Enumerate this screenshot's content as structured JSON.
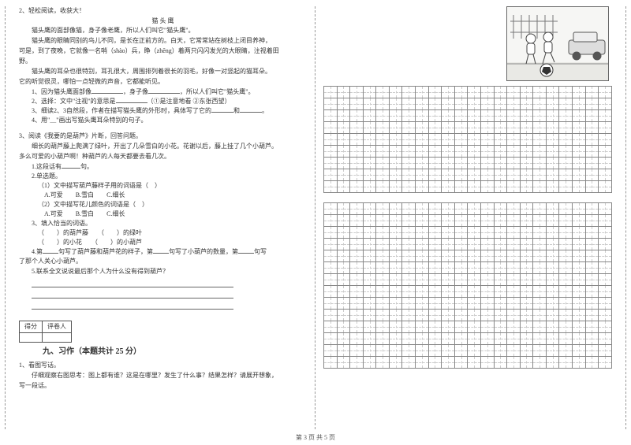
{
  "left": {
    "q2_head": "2、轻松阅读，收获大！",
    "q2_title": "猫 头 鹰",
    "q2_p1": "猫头鹰的面部像猫，身子像老鹰，所以人们叫它\"猫头鹰\"。",
    "q2_p2a": "猫头鹰的眼睛同别的鸟儿不同，是长在正前方的。白天，它常常站在树枝上闭目养神，",
    "q2_p2b": "可是，到了夜晚，它就像一名哨（shào）兵，睁（zhēng）着两只闪闪发光的大眼睛，注视着田",
    "q2_p2c": "野。",
    "q2_p3a": "猫头鹰的耳朵也很特别，耳孔很大，周围排列着很长的羽毛，好像一对竖起的猫耳朵。",
    "q2_p3b": "它的听觉很灵，哪怕一点轻微的声音，它都能听见。",
    "q2_s1a": "1、因为猫头鹰面部像",
    "q2_s1b": "，身子像",
    "q2_s1c": "，所以人们叫它\"猫头鹰\"。",
    "q2_s2a": "2、选择：文中\"注视\"的意思是",
    "q2_s2b": "（①是注意地看 ②东张西望）",
    "q2_s3a": "3、细读2、3自然段，作者在描写猫头鹰的外形时，具体写了它的",
    "q2_s3b": "和",
    "q2_s3c": "。",
    "q2_s4": "4、用\"＿\"画出写猫头鹰耳朵特别的句子。",
    "q3_head": "3、阅读《我要的是葫芦》片断，回答问题。",
    "q3_p1": "细长的葫芦藤上爬满了绿叶，开出了几朵雪白的小花。花谢以后，藤上挂了几个小葫芦。",
    "q3_p2": "多么可爱的小葫芦啊！种葫芦的人每天都要去看几次。",
    "q3_s1a": "1.这段话有",
    "q3_s1b": "句。",
    "q3_s2": "2.单选题。",
    "q3_s2_1": "（1）文中描写葫芦藤样子用的词语是（　）",
    "q3_s2_opts": "A.可爱　　B.雪白　　C.细长",
    "q3_s2_2": "（2）文中描写花儿颜色的词语是（　）",
    "q3_s3": "3、填入恰当的词语。",
    "q3_s3_l1": "（　　）的葫芦藤　　（　　）的绿叶",
    "q3_s3_l2": "（　　）的小花　　（　　）的小葫芦",
    "q3_s4a": "4.第",
    "q3_s4b": "句写了葫芦藤和葫芦花的样子，第",
    "q3_s4c": "句写了小葫芦的数量，第",
    "q3_s4d": "句写",
    "q3_s4e": "了那个人关心小葫芦。",
    "q3_s5": "5.联系全文说说最后那个人为什么没有得到葫芦？",
    "score_h1": "得分",
    "score_h2": "评卷人",
    "section9": "九、习作（本题共计 25 分）",
    "w_head": "1、看图写话。",
    "w_p1": "仔细观察右图思考：图上都有谁？这是在哪里？发生了什么事？结果怎样？请展开想象，",
    "w_p2": "写一段话。"
  },
  "grid": {
    "cols": 22,
    "block1_rows": 9,
    "block2_rows": 14,
    "cell_border": "#888",
    "cell_guide": "#ccc"
  },
  "footer": "第 3 页 共 5 页"
}
